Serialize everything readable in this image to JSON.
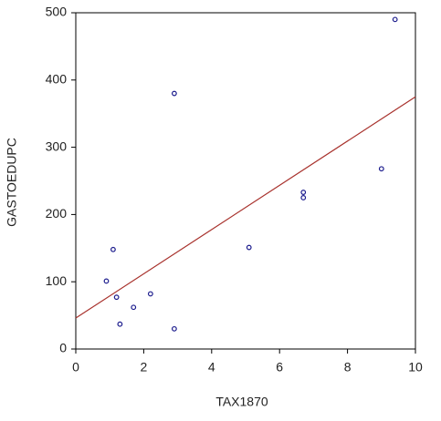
{
  "chart_data": {
    "type": "scatter",
    "x_label": "TAX1870",
    "y_label": "GASTOEDUPC",
    "x": [
      9.4,
      2.9,
      9.0,
      6.7,
      6.7,
      5.1,
      1.1,
      0.9,
      1.2,
      2.2,
      1.7,
      1.3,
      2.9
    ],
    "y": [
      490,
      380,
      268,
      233,
      225,
      151,
      148,
      101,
      77,
      82,
      62,
      37,
      30
    ],
    "point_color": "#1a1a8c",
    "fit_line": {
      "x": [
        0,
        10
      ],
      "y": [
        46,
        375
      ],
      "color": "#a8312c"
    },
    "xlim": [
      0,
      10
    ],
    "xticks": [
      0,
      2,
      4,
      6,
      8,
      10
    ],
    "ylim": [
      0,
      500
    ],
    "yticks": [
      0,
      100,
      200,
      300,
      400,
      500
    ],
    "grid": false
  }
}
